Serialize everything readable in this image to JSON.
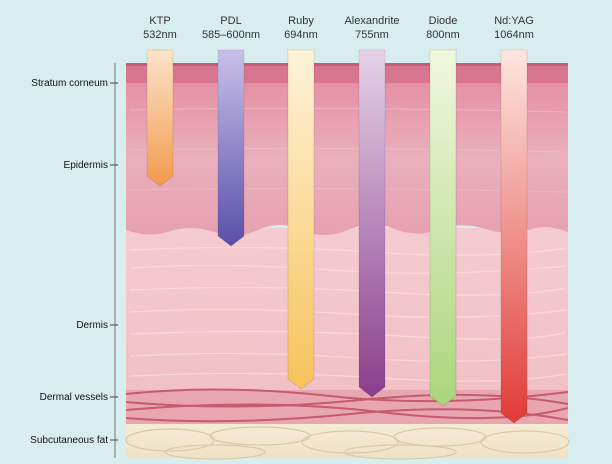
{
  "lasers": [
    {
      "name": "KTP",
      "wavelength": "532nm",
      "color_top": "#fbe3c8",
      "color_bottom": "#f39a4e",
      "depth_layer": "Epidermis"
    },
    {
      "name": "PDL",
      "wavelength": "585–600nm",
      "color_top": "#c9c0ea",
      "color_bottom": "#5a4fa8",
      "depth_layer": "Epidermis (lower)"
    },
    {
      "name": "Ruby",
      "wavelength": "694nm",
      "color_top": "#fdf2d8",
      "color_bottom": "#f7c25a",
      "depth_layer": "Dermis"
    },
    {
      "name": "Alexandrite",
      "wavelength": "755nm",
      "color_top": "#e6d2e8",
      "color_bottom": "#8a3e8c",
      "depth_layer": "Dermal vessels"
    },
    {
      "name": "Diode",
      "wavelength": "800nm",
      "color_top": "#f1f7de",
      "color_bottom": "#a9d57a",
      "depth_layer": "Dermal vessels"
    },
    {
      "name": "Nd:YAG",
      "wavelength": "1064nm",
      "color_top": "#fde6df",
      "color_bottom": "#e23b36",
      "depth_layer": "Subcutaneous fat"
    }
  ],
  "layers": [
    {
      "name": "Stratum corneum",
      "color": "#d27a91"
    },
    {
      "name": "Epidermis",
      "color": "#e9a9b5"
    },
    {
      "name": "Dermis",
      "color": "#f3c6cb"
    },
    {
      "name": "Dermal vessels",
      "color": "#c9606f"
    },
    {
      "name": "Subcutaneous fat",
      "color": "#f5ead2"
    }
  ],
  "colors": {
    "background": "#d8eeee",
    "skin_base": "#f2c2c7"
  }
}
